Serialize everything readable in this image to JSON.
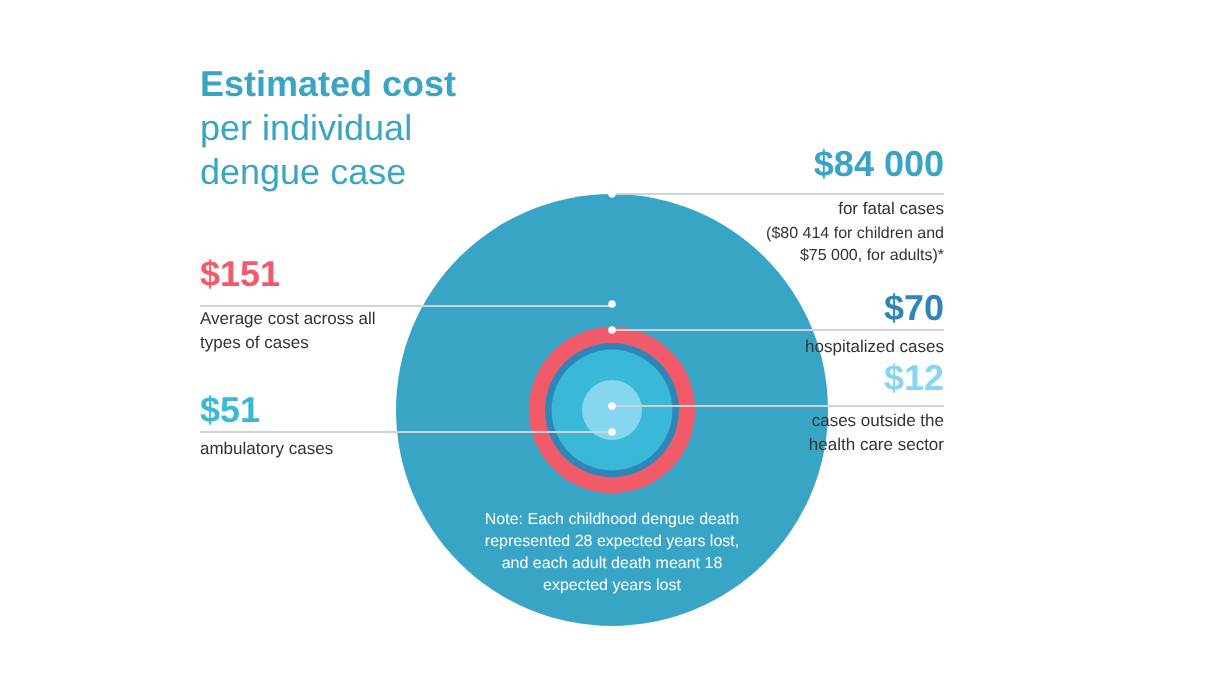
{
  "chart_data": {
    "type": "other",
    "title": "Estimated cost",
    "subtitle": "per individual dengue case",
    "categories": [
      "for fatal cases",
      "Average cost across all types of cases",
      "hospitalized cases",
      "ambulatory cases",
      "cases outside the health care sector"
    ],
    "values": [
      84000,
      151,
      70,
      51,
      12
    ],
    "value_labels": [
      "$84 000",
      "$151",
      "$70",
      "$51",
      "$12"
    ],
    "colors": [
      "#39a5c6",
      "#f15b69",
      "#2e86b8",
      "#3ab8d8",
      "#86d6f0"
    ],
    "annotations": [
      "($80 414 for children and $75 000, for adults)*",
      "Note: Each childhood dengue death represented 28 expected years lost, and each adult death meant 18 expected years lost"
    ]
  }
}
